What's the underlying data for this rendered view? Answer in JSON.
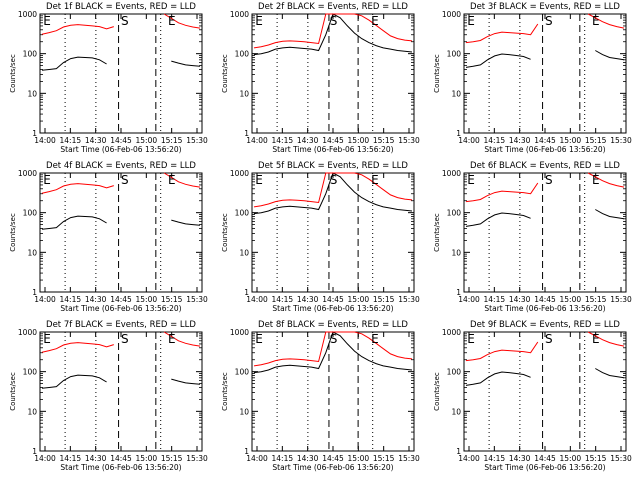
{
  "chart_data": [
    {
      "type": "line",
      "title": "Det 1f BLACK = Events, RED = LLD",
      "xlabel": "Start Time (06-Feb-06 13:56:20)",
      "ylabel": "Counts/sec",
      "xticks": [
        "14:00",
        "14:15",
        "14:30",
        "14:45",
        "15:00",
        "15:15",
        "15:30"
      ],
      "yticks": [
        "1",
        "10",
        "100",
        "1000"
      ],
      "ylim": [
        1,
        1000
      ],
      "yscale": "log",
      "markers": [
        "E",
        "S",
        "E"
      ],
      "profile": "a",
      "series": [
        {
          "color": "#000000",
          "values": [
            38,
            40,
            42,
            60,
            75,
            82,
            80,
            78,
            70,
            55,
            null,
            null,
            null,
            null,
            null,
            null,
            null,
            null,
            65,
            58,
            52,
            50,
            48
          ]
        },
        {
          "color": "#ff0000",
          "values": [
            310,
            340,
            380,
            470,
            520,
            540,
            520,
            500,
            480,
            420,
            480,
            null,
            null,
            null,
            null,
            null,
            null,
            1000,
            780,
            600,
            520,
            470,
            440
          ]
        }
      ]
    },
    {
      "type": "line",
      "title": "Det 2f BLACK = Events, RED = LLD",
      "xlabel": "Start Time (06-Feb-06 13:56:20)",
      "ylabel": "Counts/sec",
      "xticks": [
        "14:00",
        "14:15",
        "14:30",
        "14:45",
        "15:00",
        "15:15",
        "15:30"
      ],
      "yticks": [
        "1",
        "10",
        "100",
        "1000"
      ],
      "ylim": [
        1,
        1000
      ],
      "yscale": "log",
      "markers": [
        "E",
        "S",
        "E"
      ],
      "profile": "b",
      "series": [
        {
          "color": "#000000",
          "values": [
            95,
            100,
            110,
            130,
            140,
            145,
            140,
            135,
            130,
            120,
            300,
            1000,
            800,
            500,
            330,
            240,
            190,
            160,
            140,
            130,
            120,
            115,
            110
          ]
        },
        {
          "color": "#ff0000",
          "values": [
            140,
            150,
            165,
            190,
            205,
            210,
            205,
            200,
            190,
            180,
            1000,
            1000,
            1000,
            1000,
            1000,
            900,
            700,
            520,
            380,
            280,
            240,
            220,
            210
          ]
        }
      ]
    },
    {
      "type": "line",
      "title": "Det 3f BLACK = Events, RED = LLD",
      "xlabel": "Start Time (06-Feb-06 13:56:20)",
      "ylabel": "Counts/sec",
      "xticks": [
        "14:00",
        "14:15",
        "14:30",
        "14:45",
        "15:00",
        "15:15",
        "15:30"
      ],
      "yticks": [
        "1",
        "10",
        "100",
        "1000"
      ],
      "ylim": [
        1,
        1000
      ],
      "yscale": "log",
      "markers": [
        "E",
        "S",
        "E"
      ],
      "profile": "a",
      "series": [
        {
          "color": "#000000",
          "values": [
            45,
            48,
            52,
            70,
            88,
            98,
            95,
            90,
            85,
            72,
            null,
            null,
            null,
            null,
            null,
            null,
            null,
            null,
            120,
            95,
            80,
            75,
            70
          ]
        },
        {
          "color": "#ff0000",
          "values": [
            190,
            200,
            215,
            270,
            320,
            350,
            340,
            330,
            320,
            300,
            560,
            null,
            null,
            null,
            null,
            null,
            null,
            1000,
            800,
            640,
            540,
            480,
            440
          ]
        }
      ]
    },
    {
      "type": "line",
      "title": "Det 4f BLACK = Events, RED = LLD",
      "xlabel": "Start Time (06-Feb-06 13:56:20)",
      "ylabel": "Counts/sec",
      "xticks": [
        "14:00",
        "14:15",
        "14:30",
        "14:45",
        "15:00",
        "15:15",
        "15:30"
      ],
      "yticks": [
        "1",
        "10",
        "100",
        "1000"
      ],
      "ylim": [
        1,
        1000
      ],
      "yscale": "log",
      "markers": [
        "E",
        "S",
        "E"
      ],
      "profile": "a",
      "series": [
        {
          "color": "#000000",
          "values": [
            38,
            40,
            42,
            60,
            75,
            82,
            80,
            78,
            70,
            55,
            null,
            null,
            null,
            null,
            null,
            null,
            null,
            null,
            65,
            58,
            52,
            50,
            48
          ]
        },
        {
          "color": "#ff0000",
          "values": [
            310,
            340,
            380,
            470,
            520,
            540,
            520,
            500,
            480,
            420,
            480,
            null,
            null,
            null,
            null,
            null,
            null,
            1000,
            780,
            600,
            520,
            470,
            440
          ]
        }
      ]
    },
    {
      "type": "line",
      "title": "Det 5f BLACK = Events, RED = LLD",
      "xlabel": "Start Time (06-Feb-06 13:56:20)",
      "ylabel": "Counts/sec",
      "xticks": [
        "14:00",
        "14:15",
        "14:30",
        "14:45",
        "15:00",
        "15:15",
        "15:30"
      ],
      "yticks": [
        "1",
        "10",
        "100",
        "1000"
      ],
      "ylim": [
        1,
        1000
      ],
      "yscale": "log",
      "markers": [
        "E",
        "S",
        "E"
      ],
      "profile": "b",
      "series": [
        {
          "color": "#000000",
          "values": [
            95,
            100,
            110,
            130,
            140,
            145,
            140,
            135,
            130,
            120,
            300,
            1000,
            800,
            500,
            330,
            240,
            190,
            160,
            140,
            130,
            120,
            115,
            110
          ]
        },
        {
          "color": "#ff0000",
          "values": [
            140,
            150,
            165,
            190,
            205,
            210,
            205,
            200,
            190,
            180,
            1000,
            1000,
            1000,
            1000,
            1000,
            900,
            700,
            520,
            380,
            280,
            240,
            220,
            210
          ]
        }
      ]
    },
    {
      "type": "line",
      "title": "Det 6f BLACK = Events, RED = LLD",
      "xlabel": "Start Time (06-Feb-06 13:56:20)",
      "ylabel": "Counts/sec",
      "xticks": [
        "14:00",
        "14:15",
        "14:30",
        "14:45",
        "15:00",
        "15:15",
        "15:30"
      ],
      "yticks": [
        "1",
        "10",
        "100",
        "1000"
      ],
      "ylim": [
        1,
        1000
      ],
      "yscale": "log",
      "markers": [
        "E",
        "S",
        "E"
      ],
      "profile": "a",
      "series": [
        {
          "color": "#000000",
          "values": [
            45,
            48,
            52,
            70,
            88,
            98,
            95,
            90,
            85,
            72,
            null,
            null,
            null,
            null,
            null,
            null,
            null,
            null,
            120,
            95,
            80,
            75,
            70
          ]
        },
        {
          "color": "#ff0000",
          "values": [
            190,
            200,
            215,
            270,
            320,
            350,
            340,
            330,
            320,
            300,
            560,
            null,
            null,
            null,
            null,
            null,
            null,
            1000,
            800,
            640,
            540,
            480,
            440
          ]
        }
      ]
    },
    {
      "type": "line",
      "title": "Det 7f BLACK = Events, RED = LLD",
      "xlabel": "Start Time (06-Feb-06 13:56:20)",
      "ylabel": "Counts/sec",
      "xticks": [
        "14:00",
        "14:15",
        "14:30",
        "14:45",
        "15:00",
        "15:15",
        "15:30"
      ],
      "yticks": [
        "1",
        "10",
        "100",
        "1000"
      ],
      "ylim": [
        1,
        1000
      ],
      "yscale": "log",
      "markers": [
        "E",
        "S",
        "E"
      ],
      "profile": "a",
      "series": [
        {
          "color": "#000000",
          "values": [
            38,
            40,
            42,
            60,
            75,
            82,
            80,
            78,
            70,
            55,
            null,
            null,
            null,
            null,
            null,
            null,
            null,
            null,
            65,
            58,
            52,
            50,
            48
          ]
        },
        {
          "color": "#ff0000",
          "values": [
            310,
            340,
            380,
            470,
            520,
            540,
            520,
            500,
            480,
            420,
            480,
            null,
            null,
            null,
            null,
            null,
            null,
            1000,
            780,
            600,
            520,
            470,
            440
          ]
        }
      ]
    },
    {
      "type": "line",
      "title": "Det 8f BLACK = Events, RED = LLD",
      "xlabel": "Start Time (06-Feb-06 13:56:20)",
      "ylabel": "Counts/sec",
      "xticks": [
        "14:00",
        "14:15",
        "14:30",
        "14:45",
        "15:00",
        "15:15",
        "15:30"
      ],
      "yticks": [
        "1",
        "10",
        "100",
        "1000"
      ],
      "ylim": [
        1,
        1000
      ],
      "yscale": "log",
      "markers": [
        "E",
        "S",
        "E"
      ],
      "profile": "b",
      "series": [
        {
          "color": "#000000",
          "values": [
            95,
            100,
            110,
            130,
            140,
            145,
            140,
            135,
            130,
            120,
            300,
            1000,
            800,
            500,
            330,
            240,
            190,
            160,
            140,
            130,
            120,
            115,
            110
          ]
        },
        {
          "color": "#ff0000",
          "values": [
            140,
            150,
            165,
            190,
            205,
            210,
            205,
            200,
            190,
            180,
            1000,
            1000,
            1000,
            1000,
            1000,
            900,
            700,
            520,
            380,
            280,
            240,
            220,
            210
          ]
        }
      ]
    },
    {
      "type": "line",
      "title": "Det 9f BLACK = Events, RED = LLD",
      "xlabel": "Start Time (06-Feb-06 13:56:20)",
      "ylabel": "Counts/sec",
      "xticks": [
        "14:00",
        "14:15",
        "14:30",
        "14:45",
        "15:00",
        "15:15",
        "15:30"
      ],
      "yticks": [
        "1",
        "10",
        "100",
        "1000"
      ],
      "ylim": [
        1,
        1000
      ],
      "yscale": "log",
      "markers": [
        "E",
        "S",
        "E"
      ],
      "profile": "a",
      "series": [
        {
          "color": "#000000",
          "values": [
            45,
            48,
            52,
            70,
            88,
            98,
            95,
            90,
            85,
            72,
            null,
            null,
            null,
            null,
            null,
            null,
            null,
            null,
            120,
            95,
            80,
            75,
            70
          ]
        },
        {
          "color": "#ff0000",
          "values": [
            190,
            200,
            215,
            270,
            320,
            350,
            340,
            330,
            320,
            300,
            560,
            null,
            null,
            null,
            null,
            null,
            null,
            1000,
            800,
            640,
            540,
            480,
            440
          ]
        }
      ]
    }
  ]
}
